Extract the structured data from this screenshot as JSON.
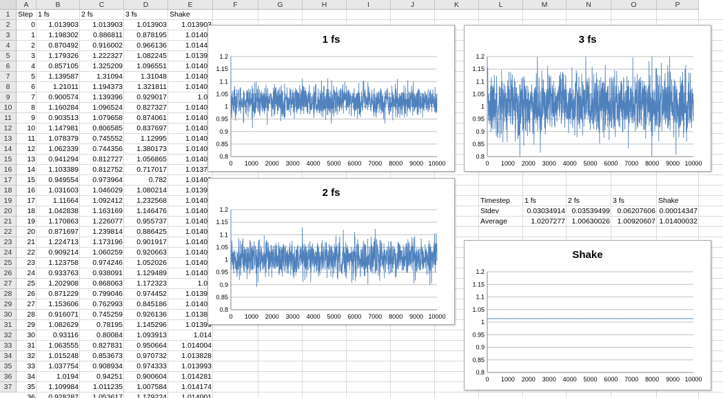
{
  "columns": [
    "A",
    "B",
    "C",
    "D",
    "E",
    "F",
    "G",
    "H",
    "I",
    "J",
    "K",
    "L",
    "M",
    "N",
    "O",
    "P"
  ],
  "rows": [
    "1",
    "2",
    "3",
    "4",
    "5",
    "6",
    "7",
    "8",
    "9",
    "10",
    "11",
    "12",
    "13",
    "14",
    "15",
    "16",
    "17",
    "18",
    "19",
    "20",
    "21",
    "22",
    "23",
    "24",
    "25",
    "26",
    "27",
    "28",
    "29",
    "30",
    "31",
    "32",
    "33",
    "34",
    "35",
    "36",
    "37"
  ],
  "table": {
    "headers": [
      "Step",
      "1 fs",
      "2 fs",
      "3 fs",
      "Shake"
    ],
    "rows": [
      [
        "0",
        "1.013903",
        "1.013903",
        "1.013903",
        "1.013903"
      ],
      [
        "1",
        "1.198302",
        "0.886811",
        "0.878195",
        "1.01400"
      ],
      [
        "2",
        "0.870492",
        "0.916002",
        "0.966136",
        "1.01441"
      ],
      [
        "3",
        "1.179326",
        "1.222327",
        "1.082245",
        "1.01399"
      ],
      [
        "4",
        "0.857105",
        "1.325209",
        "1.096551",
        "1.01400"
      ],
      [
        "5",
        "1.139587",
        "1.31094",
        "1.31048",
        "1.01400"
      ],
      [
        "6",
        "1.21011",
        "1.194373",
        "1.321811",
        "1.01400"
      ],
      [
        "7",
        "0.900574",
        "1.139396",
        "0.929017",
        "1.01"
      ],
      [
        "8",
        "1.160284",
        "1.096524",
        "0.827327",
        "1.01400"
      ],
      [
        "9",
        "0.903513",
        "1.079658",
        "0.874061",
        "1.01400"
      ],
      [
        "10",
        "1.147981",
        "0.806585",
        "0.837697",
        "1.01400"
      ],
      [
        "11",
        "1.078379",
        "0.745552",
        "1.12995",
        "1.01400"
      ],
      [
        "12",
        "1.062339",
        "0.744356",
        "1.380173",
        "1.01400"
      ],
      [
        "13",
        "0.941294",
        "0.812727",
        "1.056865",
        "1.01400"
      ],
      [
        "14",
        "1.103389",
        "0.812752",
        "0.717017",
        "1.01373"
      ],
      [
        "15",
        "0.949554",
        "0.973964",
        "0.782",
        "1.01400"
      ],
      [
        "16",
        "1.031603",
        "1.046029",
        "1.080214",
        "1.01399"
      ],
      [
        "17",
        "1.11664",
        "1.092412",
        "1.232568",
        "1.01400"
      ],
      [
        "18",
        "1.042838",
        "1.163169",
        "1.146476",
        "1.01400"
      ],
      [
        "19",
        "1.170863",
        "1.226077",
        "0.955737",
        "1.01400"
      ],
      [
        "20",
        "0.871697",
        "1.239814",
        "0.886425",
        "1.01400"
      ],
      [
        "21",
        "1.224713",
        "1.173196",
        "0.901917",
        "1.01400"
      ],
      [
        "22",
        "0.909214",
        "1.060259",
        "0.920663",
        "1.01400"
      ],
      [
        "23",
        "1.123758",
        "0.974246",
        "1.052026",
        "1.01400"
      ],
      [
        "24",
        "0.933763",
        "0.938091",
        "1.129489",
        "1.01400"
      ],
      [
        "25",
        "1.202908",
        "0.868063",
        "1.172323",
        "1.01"
      ],
      [
        "26",
        "0.871229",
        "0.799046",
        "0.974452",
        "1.01399"
      ],
      [
        "27",
        "1.153606",
        "0.762993",
        "0.845186",
        "1.01400"
      ],
      [
        "28",
        "0.916071",
        "0.745259",
        "0.926136",
        "1.01382"
      ],
      [
        "29",
        "1.082629",
        "0.78195",
        "1.145296",
        "1.01399"
      ],
      [
        "30",
        "0.93116",
        "0.80084",
        "1.093913",
        "1.014"
      ],
      [
        "31",
        "1.063555",
        "0.827831",
        "0.950664",
        "1.014004"
      ],
      [
        "32",
        "1.015248",
        "0.853673",
        "0.970732",
        "1.013828"
      ],
      [
        "33",
        "1.037754",
        "0.908934",
        "0.974333",
        "1.013993"
      ],
      [
        "34",
        "1.0194",
        "0.94251",
        "0.900604",
        "1.014281"
      ],
      [
        "35",
        "1.109984",
        "1.011235",
        "1.007584",
        "1.014174"
      ],
      [
        "36",
        "0.928287",
        "1.053617",
        "1.179224",
        "1.014001"
      ]
    ]
  },
  "summary": {
    "header": [
      "Timestep",
      "1 fs",
      "2 fs",
      "3 fs",
      "Shake"
    ],
    "stdev": [
      "Stdev",
      "0.03034914",
      "0.03539499",
      "0.06207606",
      "0.00014347"
    ],
    "average": [
      "Average",
      "1.0207277",
      "1.00630026",
      "1.00920607",
      "1.01400032"
    ]
  },
  "colors": {
    "series": "#4f81bd",
    "gridline": "#c0c0c0",
    "axis": "#868686"
  },
  "chart_data": [
    {
      "type": "line",
      "title": "1 fs",
      "x_range": [
        0,
        10000
      ],
      "ylim": [
        0.8,
        1.2
      ],
      "x_ticks": [
        "0",
        "1000",
        "2000",
        "3000",
        "4000",
        "5000",
        "6000",
        "7000",
        "8000",
        "9000",
        "10000"
      ],
      "y_ticks": [
        "0.8",
        "0.85",
        "0.9",
        "0.95",
        "1",
        "1.05",
        "1.1",
        "1.15",
        "1.2"
      ],
      "grid": true,
      "legend": "none",
      "series": [
        {
          "mean": 1.0207277,
          "stdev": 0.03034914,
          "points": 10000
        }
      ]
    },
    {
      "type": "line",
      "title": "3 fs",
      "x_range": [
        0,
        10000
      ],
      "ylim": [
        0.8,
        1.2
      ],
      "x_ticks": [
        "0",
        "1000",
        "2000",
        "3000",
        "4000",
        "5000",
        "6000",
        "7000",
        "8000",
        "9000",
        "10000"
      ],
      "y_ticks": [
        "0.8",
        "0.85",
        "0.9",
        "0.95",
        "1",
        "1.05",
        "1.1",
        "1.15",
        "1.2"
      ],
      "grid": true,
      "legend": "none",
      "series": [
        {
          "mean": 1.00920607,
          "stdev": 0.06207606,
          "points": 10000
        }
      ]
    },
    {
      "type": "line",
      "title": "2 fs",
      "x_range": [
        0,
        10000
      ],
      "ylim": [
        0.8,
        1.2
      ],
      "x_ticks": [
        "0",
        "1000",
        "2000",
        "3000",
        "4000",
        "5000",
        "6000",
        "7000",
        "8000",
        "9000",
        "10000"
      ],
      "y_ticks": [
        "0.8",
        "0.85",
        "0.9",
        "0.95",
        "1",
        "1.05",
        "1.1",
        "1.15",
        "1.2"
      ],
      "grid": true,
      "legend": "none",
      "series": [
        {
          "mean": 1.00630026,
          "stdev": 0.03539499,
          "points": 10000
        }
      ]
    },
    {
      "type": "line",
      "title": "Shake",
      "x_range": [
        0,
        10000
      ],
      "ylim": [
        0.8,
        1.2
      ],
      "x_ticks": [
        "0",
        "1000",
        "2000",
        "3000",
        "4000",
        "5000",
        "6000",
        "7000",
        "8000",
        "9000",
        "10000"
      ],
      "y_ticks": [
        "0.8",
        "0.85",
        "0.9",
        "0.95",
        "1",
        "1.05",
        "1.1",
        "1.15",
        "1.2"
      ],
      "grid": true,
      "legend": "none",
      "series": [
        {
          "mean": 1.01400032,
          "stdev": 0.00014347,
          "points": 10000
        }
      ]
    }
  ]
}
